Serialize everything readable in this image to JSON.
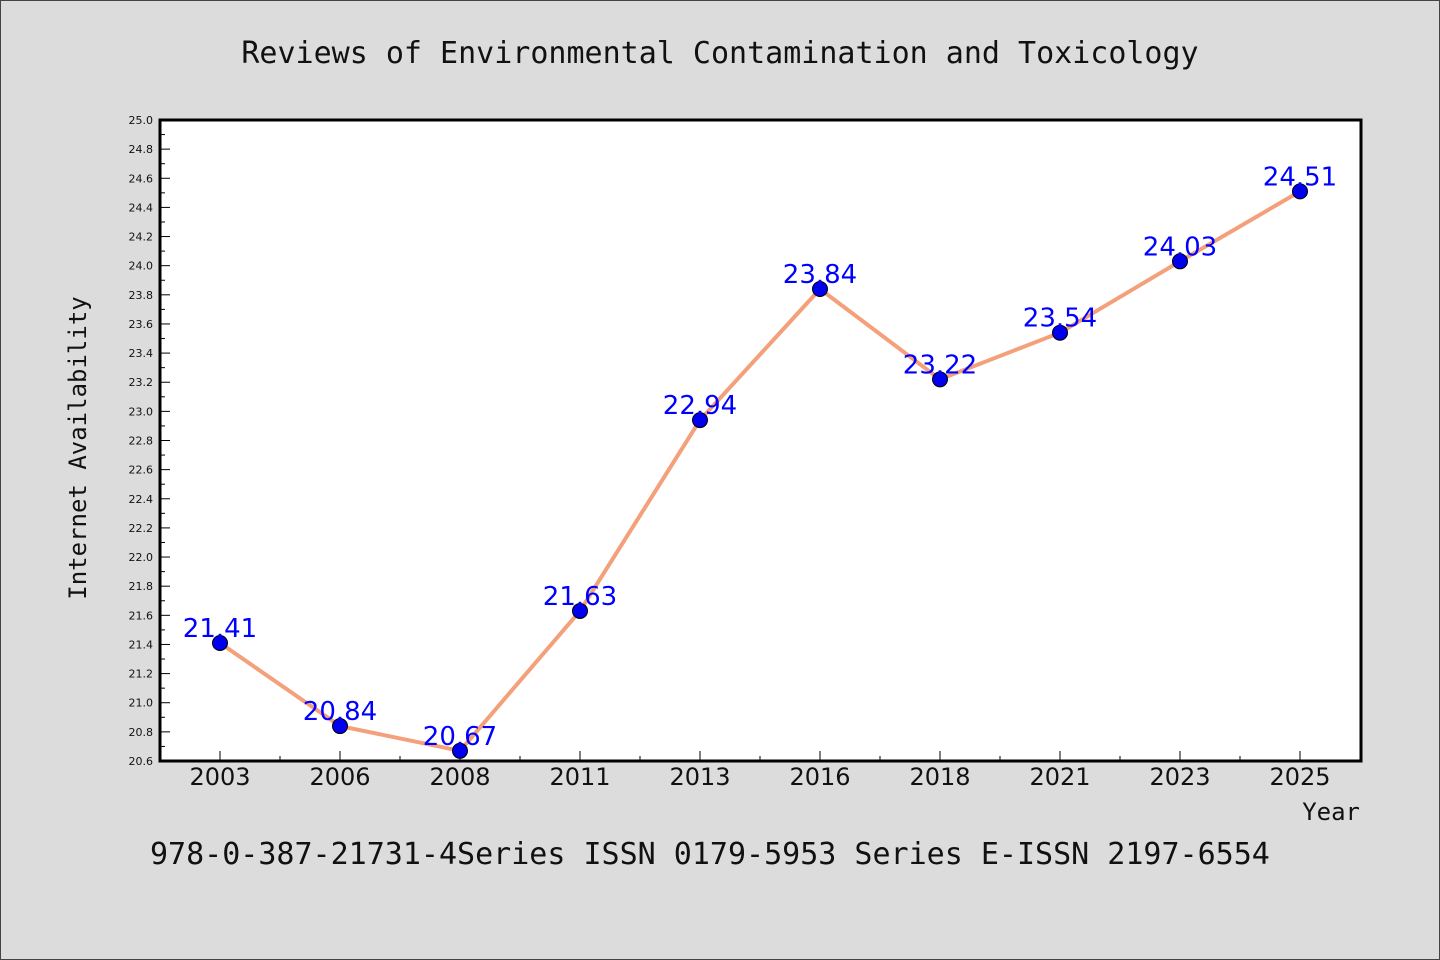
{
  "chart_data": {
    "type": "line",
    "title": "Reviews of Environmental Contamination and Toxicology",
    "xlabel": "Year",
    "ylabel": "Internet Availability",
    "categories": [
      "2003",
      "2006",
      "2008",
      "2011",
      "2013",
      "2016",
      "2018",
      "2021",
      "2023",
      "2025"
    ],
    "series": [
      {
        "values": [
          21.41,
          20.84,
          20.67,
          21.63,
          22.94,
          23.84,
          23.22,
          23.54,
          24.03,
          24.51
        ]
      }
    ],
    "data_labels": [
      "21.41",
      "20.84",
      "20.67",
      "21.63",
      "22.94",
      "23.84",
      "23.22",
      "23.54",
      "24.03",
      "24.51"
    ],
    "ylim": [
      20.6,
      25.0
    ],
    "yticks": [
      "20.6",
      "20.8",
      "21.0",
      "21.2",
      "21.4",
      "21.6",
      "21.8",
      "22.0",
      "22.2",
      "22.4",
      "22.6",
      "22.8",
      "23.0",
      "23.2",
      "23.4",
      "23.6",
      "23.8",
      "24.0",
      "24.2",
      "24.4",
      "24.6",
      "24.8",
      "25.0"
    ],
    "grid": false,
    "legend": "none"
  },
  "footer": {
    "text": "978-0-387-21731-4Series ISSN 0179-5953 Series E-ISSN 2197-6554"
  },
  "colors": {
    "line": "#f4a07a",
    "marker": "#0000ee",
    "data_label": "#0000ff",
    "background": "#dcdcdc",
    "plot_background": "#ffffff"
  }
}
